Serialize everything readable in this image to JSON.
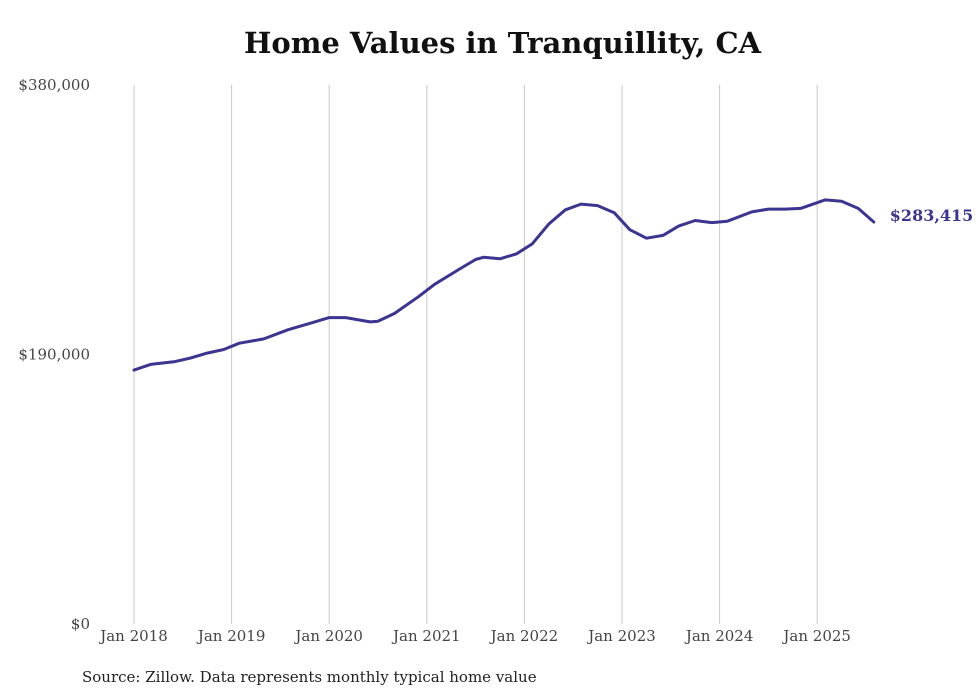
{
  "chart_data": {
    "type": "line",
    "title": "Home Values in Tranquillity, CA",
    "xlabel": "",
    "ylabel": "",
    "ylim": [
      0,
      380000
    ],
    "y_ticks": [
      {
        "value": 0,
        "label": "$0"
      },
      {
        "value": 190000,
        "label": "$190,000"
      },
      {
        "value": 380000,
        "label": "$380,000"
      }
    ],
    "x_ticks": [
      {
        "value": 2018.0,
        "label": "Jan 2018"
      },
      {
        "value": 2019.0,
        "label": "Jan 2019"
      },
      {
        "value": 2020.0,
        "label": "Jan 2020"
      },
      {
        "value": 2021.0,
        "label": "Jan 2021"
      },
      {
        "value": 2022.0,
        "label": "Jan 2022"
      },
      {
        "value": 2023.0,
        "label": "Jan 2023"
      },
      {
        "value": 2024.0,
        "label": "Jan 2024"
      },
      {
        "value": 2025.0,
        "label": "Jan 2025"
      }
    ],
    "grid": {
      "vertical": true,
      "horizontal": false
    },
    "line_color": "#3b3591",
    "series": [
      {
        "points": [
          [
            2018.0,
            179000
          ],
          [
            2018.17,
            183000
          ],
          [
            2018.42,
            185000
          ],
          [
            2018.58,
            187500
          ],
          [
            2018.75,
            191000
          ],
          [
            2018.92,
            193500
          ],
          [
            2019.08,
            198000
          ],
          [
            2019.33,
            201000
          ],
          [
            2019.58,
            207500
          ],
          [
            2019.83,
            212500
          ],
          [
            2020.0,
            216000
          ],
          [
            2020.17,
            216000
          ],
          [
            2020.42,
            213000
          ],
          [
            2020.5,
            213500
          ],
          [
            2020.67,
            219000
          ],
          [
            2020.92,
            231000
          ],
          [
            2021.08,
            239500
          ],
          [
            2021.33,
            250000
          ],
          [
            2021.5,
            257000
          ],
          [
            2021.58,
            258500
          ],
          [
            2021.75,
            257500
          ],
          [
            2021.92,
            261000
          ],
          [
            2022.08,
            268000
          ],
          [
            2022.25,
            282000
          ],
          [
            2022.42,
            292000
          ],
          [
            2022.58,
            296000
          ],
          [
            2022.75,
            295000
          ],
          [
            2022.92,
            290000
          ],
          [
            2023.08,
            278000
          ],
          [
            2023.25,
            272000
          ],
          [
            2023.42,
            274000
          ],
          [
            2023.58,
            280500
          ],
          [
            2023.75,
            284500
          ],
          [
            2023.92,
            283000
          ],
          [
            2024.08,
            284000
          ],
          [
            2024.33,
            290500
          ],
          [
            2024.5,
            292500
          ],
          [
            2024.67,
            292500
          ],
          [
            2024.83,
            293000
          ],
          [
            2025.08,
            299000
          ],
          [
            2025.25,
            298000
          ],
          [
            2025.42,
            293000
          ],
          [
            2025.58,
            283415
          ]
        ]
      }
    ],
    "end_label": "$283,415"
  },
  "source_text": "Source: Zillow. Data represents monthly typical home value"
}
